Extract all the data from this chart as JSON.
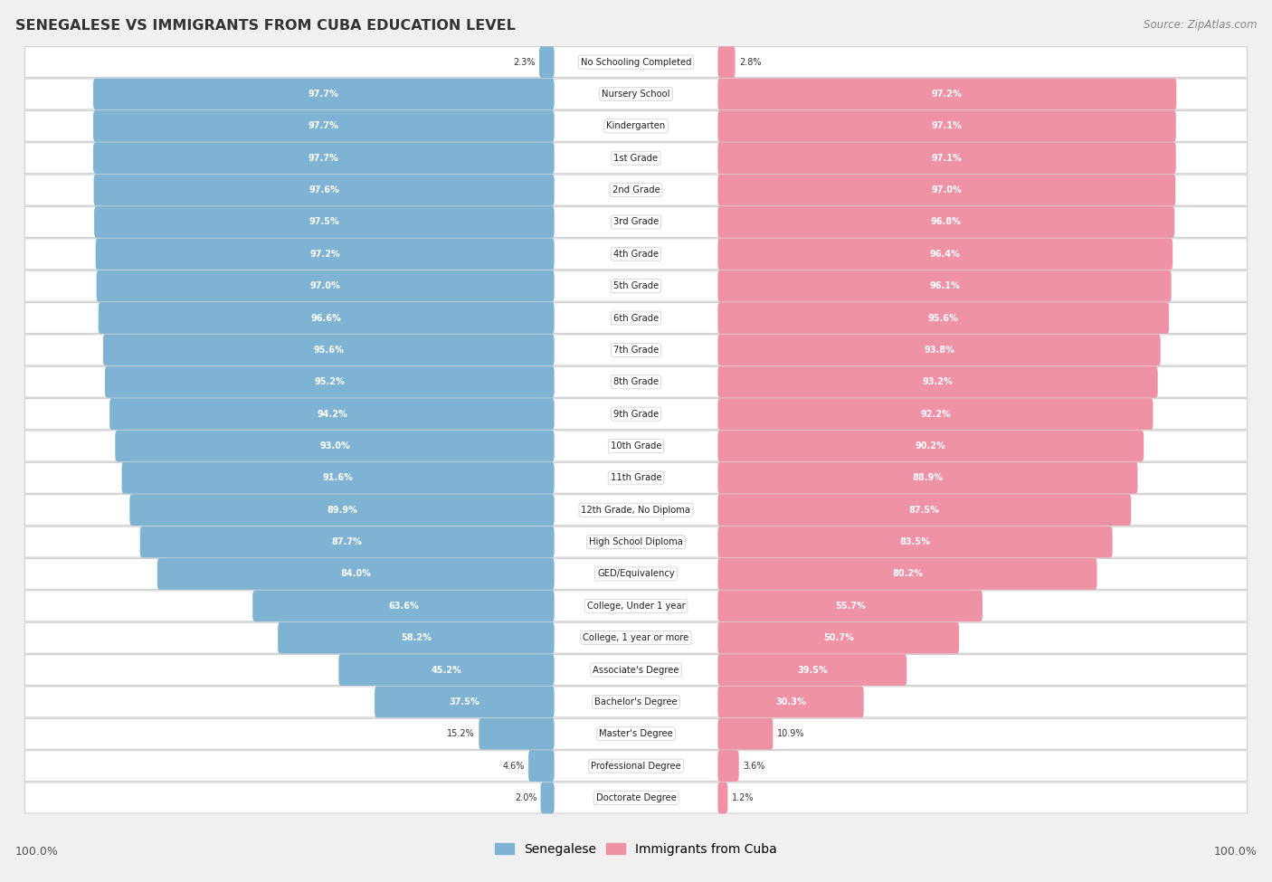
{
  "title": "SENEGALESE VS IMMIGRANTS FROM CUBA EDUCATION LEVEL",
  "source": "Source: ZipAtlas.com",
  "categories": [
    "No Schooling Completed",
    "Nursery School",
    "Kindergarten",
    "1st Grade",
    "2nd Grade",
    "3rd Grade",
    "4th Grade",
    "5th Grade",
    "6th Grade",
    "7th Grade",
    "8th Grade",
    "9th Grade",
    "10th Grade",
    "11th Grade",
    "12th Grade, No Diploma",
    "High School Diploma",
    "GED/Equivalency",
    "College, Under 1 year",
    "College, 1 year or more",
    "Associate's Degree",
    "Bachelor's Degree",
    "Master's Degree",
    "Professional Degree",
    "Doctorate Degree"
  ],
  "senegalese": [
    2.3,
    97.7,
    97.7,
    97.7,
    97.6,
    97.5,
    97.2,
    97.0,
    96.6,
    95.6,
    95.2,
    94.2,
    93.0,
    91.6,
    89.9,
    87.7,
    84.0,
    63.6,
    58.2,
    45.2,
    37.5,
    15.2,
    4.6,
    2.0
  ],
  "cuba": [
    2.8,
    97.2,
    97.1,
    97.1,
    97.0,
    96.8,
    96.4,
    96.1,
    95.6,
    93.8,
    93.2,
    92.2,
    90.2,
    88.9,
    87.5,
    83.5,
    80.2,
    55.7,
    50.7,
    39.5,
    30.3,
    10.9,
    3.6,
    1.2
  ],
  "senegalese_color": "#7fb3d3",
  "cuba_color": "#f092a5",
  "bg_color": "#f0f0f0",
  "row_color": "#e8e8e8",
  "legend_senegalese": "Senegalese",
  "legend_cuba": "Immigrants from Cuba",
  "inside_label_threshold": 20
}
